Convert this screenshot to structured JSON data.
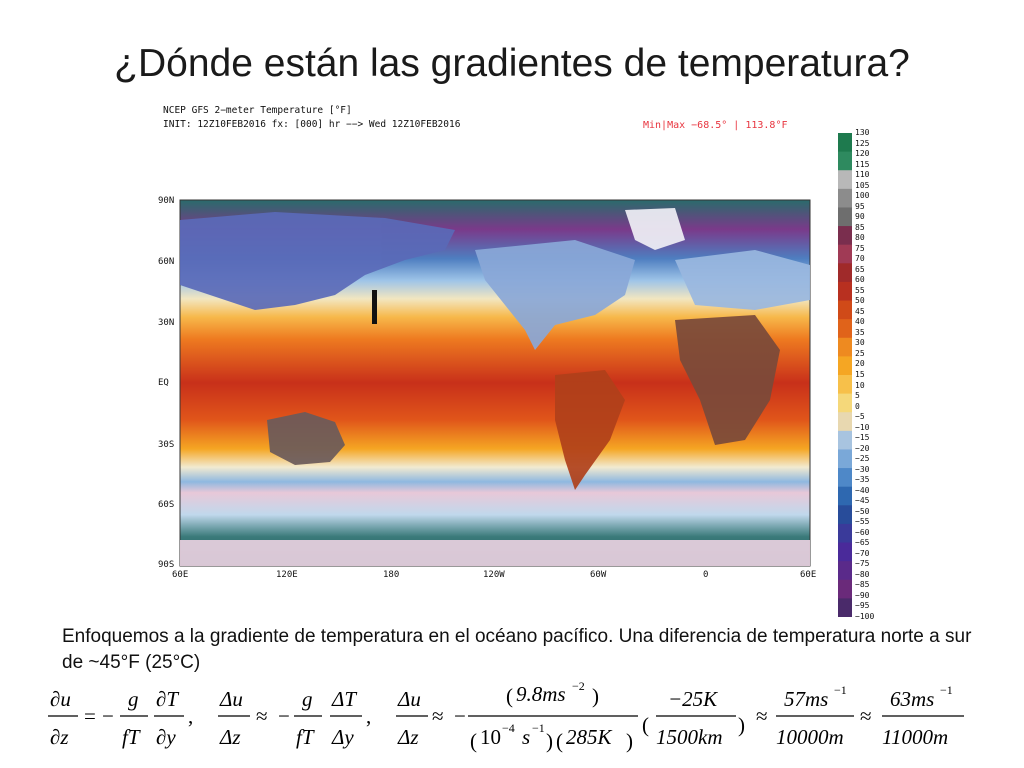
{
  "slide": {
    "title": "¿Dónde están las gradientes de temperatura?",
    "paragraph": "Enfoquemos a la gradiente de temperatura en el océano pacífico. Una diferencia de temperatura norte a sur de ~45°F (25°C)"
  },
  "map": {
    "header_line1": "NCEP GFS 2−meter Temperature [°F]",
    "header_line2": "INIT: 12Z10FEB2016 fx: [000] hr −−> Wed 12Z10FEB2016",
    "minmax": "Min|Max −68.5° | 113.8°F",
    "lat_labels": [
      "90N",
      "60N",
      "30N",
      "EQ",
      "30S",
      "60S",
      "90S"
    ],
    "lon_labels": [
      "60E",
      "120E",
      "180",
      "120W",
      "60W",
      "0",
      "60E"
    ],
    "colorbar": {
      "labels": [
        "130",
        "125",
        "120",
        "115",
        "110",
        "105",
        "100",
        "95",
        "90",
        "85",
        "80",
        "75",
        "70",
        "65",
        "60",
        "55",
        "50",
        "45",
        "40",
        "35",
        "30",
        "25",
        "20",
        "15",
        "10",
        "5",
        "0",
        "−5",
        "−10",
        "−15",
        "−20",
        "−25",
        "−30",
        "−35",
        "−40",
        "−45",
        "−50",
        "−55",
        "−60",
        "−65",
        "−70",
        "−75",
        "−80",
        "−85",
        "−90",
        "−95",
        "−100"
      ],
      "colors": [
        "#1e7a4e",
        "#2e8a5f",
        "#b8b8b8",
        "#8c8c8c",
        "#6e6e6e",
        "#7a2e4e",
        "#a03a55",
        "#a02a2a",
        "#b83020",
        "#d04a18",
        "#e0631a",
        "#ee8a20",
        "#f5a623",
        "#f7c04a",
        "#f5d87a",
        "#e8d8b0",
        "#a8c4e0",
        "#7aa8d8",
        "#4e88c8",
        "#2e68b0",
        "#284c9a",
        "#3a3a9a",
        "#4a2a9a",
        "#5a2a8a",
        "#6a2a7a",
        "#4a2a6a"
      ]
    },
    "marker": "I"
  },
  "equation": {
    "du": "∂u",
    "dz": "∂z",
    "g": "g",
    "fT": "fT",
    "dT": "∂T",
    "dy": "∂y",
    "Du": "Δu",
    "Dz": "Δz",
    "DT": "ΔT",
    "Dy": "Δy",
    "num1": "9.8ms",
    "num1_exp": "−2",
    "den1a": "10",
    "den1a_exp": "−4",
    "den1b": "s",
    "den1b_exp": "−1",
    "den1c": "285K",
    "num2": "−25K",
    "den2": "1500km",
    "num3": "57ms",
    "num3_exp": "−1",
    "den3": "10000m",
    "num4": "63ms",
    "num4_exp": "−1",
    "den4": "11000m",
    "minus": "−",
    "approx": "≈",
    "equals": "=",
    "comma": ","
  }
}
